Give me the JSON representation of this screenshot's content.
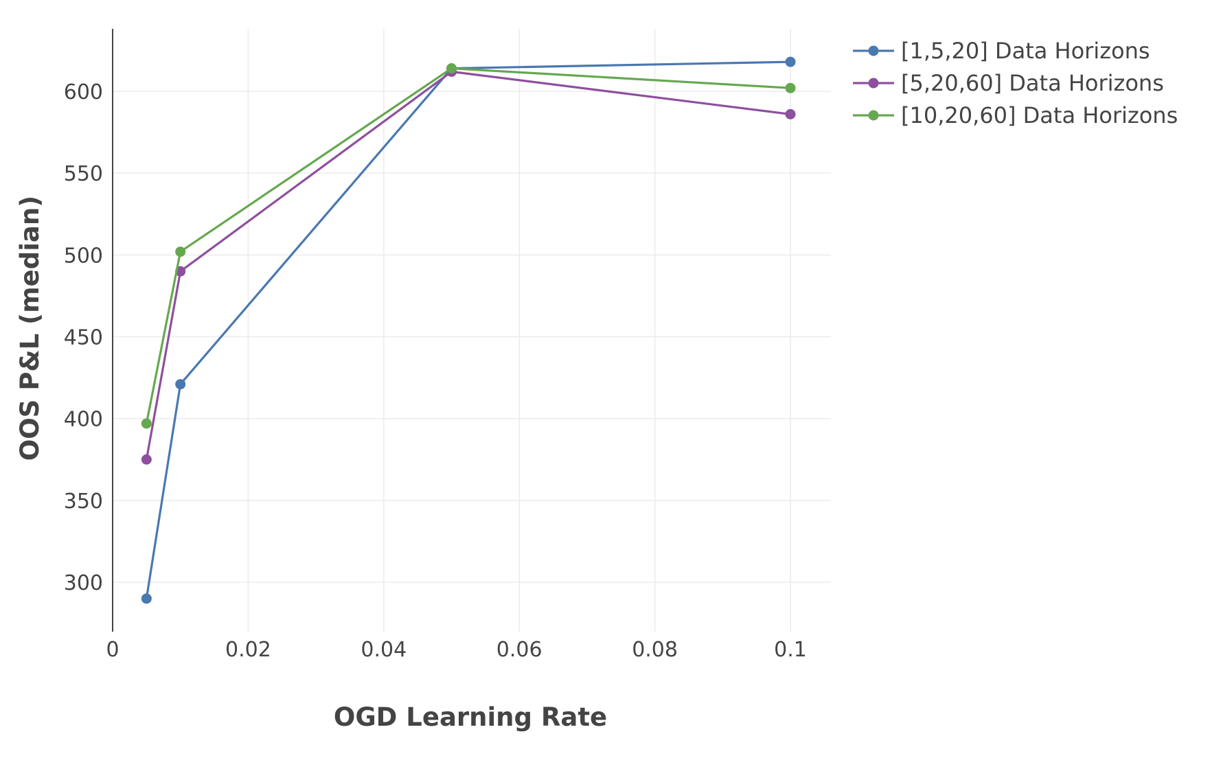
{
  "chart_data": {
    "type": "line",
    "title": "",
    "xlabel": "OGD Learning Rate",
    "ylabel": "OOS P&L (median)",
    "xlim": [
      0,
      0.106
    ],
    "ylim": [
      270,
      640
    ],
    "x_ticks": [
      {
        "value": 0,
        "label": "0"
      },
      {
        "value": 0.02,
        "label": "0.02"
      },
      {
        "value": 0.04,
        "label": "0.04"
      },
      {
        "value": 0.06,
        "label": "0.06"
      },
      {
        "value": 0.08,
        "label": "0.08"
      },
      {
        "value": 0.1,
        "label": "0.1"
      }
    ],
    "y_ticks": [
      {
        "value": 300,
        "label": "300"
      },
      {
        "value": 350,
        "label": "350"
      },
      {
        "value": 400,
        "label": "400"
      },
      {
        "value": 450,
        "label": "450"
      },
      {
        "value": 500,
        "label": "500"
      },
      {
        "value": 550,
        "label": "550"
      },
      {
        "value": 600,
        "label": "600"
      }
    ],
    "grid": true,
    "legend_position": "top-right, outside plot",
    "x": [
      0.005,
      0.01,
      0.05,
      0.1
    ],
    "series": [
      {
        "name": "[1,5,20] Data Horizons",
        "color": "#4a78b0",
        "values": [
          290,
          421,
          614,
          618
        ]
      },
      {
        "name": "[5,20,60] Data Horizons",
        "color": "#8e4f9e",
        "values": [
          375,
          490,
          612,
          586
        ]
      },
      {
        "name": "[10,20,60] Data Horizons",
        "color": "#65a84f",
        "values": [
          397,
          502,
          614,
          602
        ]
      }
    ]
  }
}
